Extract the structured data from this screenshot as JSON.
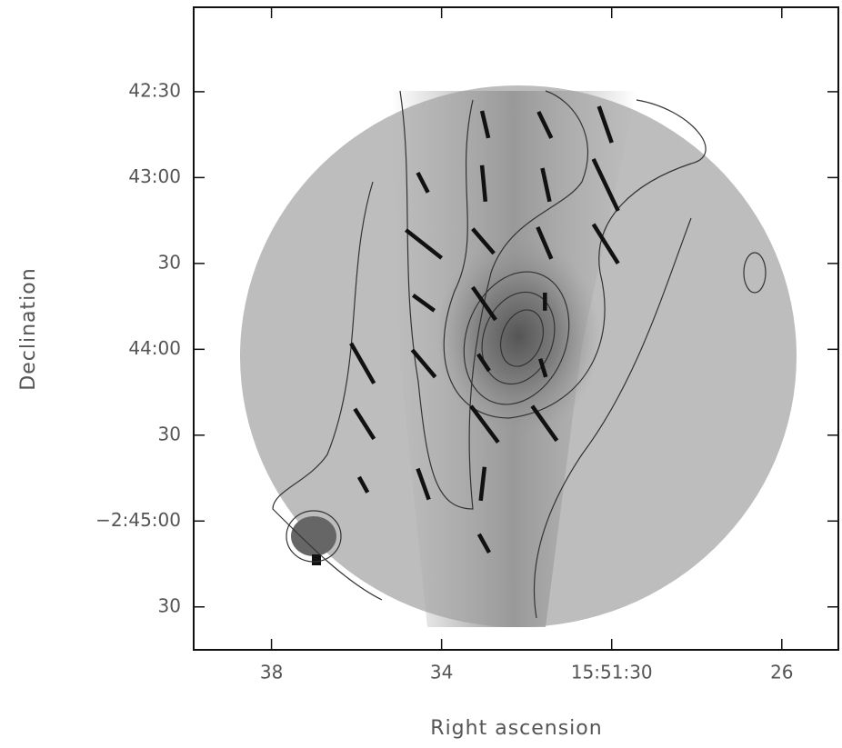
{
  "chart_data": {
    "type": "vector-map",
    "x_label": "Right ascension",
    "y_label": "Declination",
    "xlim": [
      39.83,
      24.67
    ],
    "xticks": [
      38,
      34,
      {
        "value": 30,
        "label": "15:51:30"
      },
      26
    ],
    "ylim": [
      -9945,
      -9720.5
    ],
    "yticks": [
      {
        "value": -9750,
        "label": "42:30"
      },
      {
        "value": -9780,
        "label": "43:00"
      },
      {
        "value": -9810,
        "label": "30"
      },
      {
        "value": -9840,
        "label": "44:00"
      },
      {
        "value": -9870,
        "label": "30"
      },
      {
        "value": -9900,
        "label": "−2:45:00"
      },
      {
        "value": -9930,
        "label": "30"
      }
    ],
    "color": "#111111",
    "vectors": [
      {
        "x": [
          33.05,
          32.9
        ],
        "y": [
          -9756.7,
          -9766.2
        ]
      },
      {
        "x": [
          31.72,
          31.42
        ],
        "y": [
          -9757.0,
          -9766.2
        ]
      },
      {
        "x": [
          30.3,
          30.0
        ],
        "y": [
          -9755.1,
          -9767.8
        ]
      },
      {
        "x": [
          34.56,
          34.32
        ],
        "y": [
          -9778.3,
          -9785.2
        ]
      },
      {
        "x": [
          33.05,
          32.97
        ],
        "y": [
          -9775.7,
          -9788.4
        ]
      },
      {
        "x": [
          31.63,
          31.46
        ],
        "y": [
          -9776.7,
          -9788.4
        ]
      },
      {
        "x": [
          30.43,
          29.85
        ],
        "y": [
          -9773.5,
          -9791.6
        ]
      },
      {
        "x": [
          34.84,
          34.0
        ],
        "y": [
          -9798.3,
          -9808.1
        ]
      },
      {
        "x": [
          33.27,
          32.77
        ],
        "y": [
          -9797.9,
          -9806.5
        ]
      },
      {
        "x": [
          31.74,
          31.42
        ],
        "y": [
          -9797.3,
          -9808.4
        ]
      },
      {
        "x": [
          30.43,
          29.85
        ],
        "y": [
          -9796.3,
          -9810.0
        ]
      },
      {
        "x": [
          34.67,
          34.17
        ],
        "y": [
          -9821.1,
          -9826.5
        ]
      },
      {
        "x": [
          33.27,
          32.73
        ],
        "y": [
          -9818.3,
          -9829.7
        ]
      },
      {
        "x": [
          31.57,
          31.57
        ],
        "y": [
          -9820.2,
          -9826.5
        ]
      },
      {
        "x": [
          36.13,
          35.59
        ],
        "y": [
          -9837.9,
          -9851.9
        ]
      },
      {
        "x": [
          34.69,
          34.15
        ],
        "y": [
          -9840.2,
          -9849.7
        ]
      },
      {
        "x": [
          33.14,
          32.88
        ],
        "y": [
          -9841.7,
          -9847.5
        ]
      },
      {
        "x": [
          31.68,
          31.55
        ],
        "y": [
          -9843.3,
          -9849.7
        ]
      },
      {
        "x": [
          36.04,
          35.59
        ],
        "y": [
          -9860.8,
          -9871.3
        ]
      },
      {
        "x": [
          33.31,
          32.67
        ],
        "y": [
          -9859.8,
          -9872.5
        ]
      },
      {
        "x": [
          31.87,
          31.29
        ],
        "y": [
          -9859.8,
          -9871.9
        ]
      },
      {
        "x": [
          35.94,
          35.74
        ],
        "y": [
          -9884.6,
          -9890.0
        ]
      },
      {
        "x": [
          34.56,
          34.3
        ],
        "y": [
          -9881.7,
          -9892.5
        ]
      },
      {
        "x": [
          32.99,
          33.08
        ],
        "y": [
          -9881.1,
          -9892.9
        ]
      },
      {
        "x": [
          33.12,
          32.88
        ],
        "y": [
          -9904.6,
          -9911.0
        ]
      }
    ]
  }
}
